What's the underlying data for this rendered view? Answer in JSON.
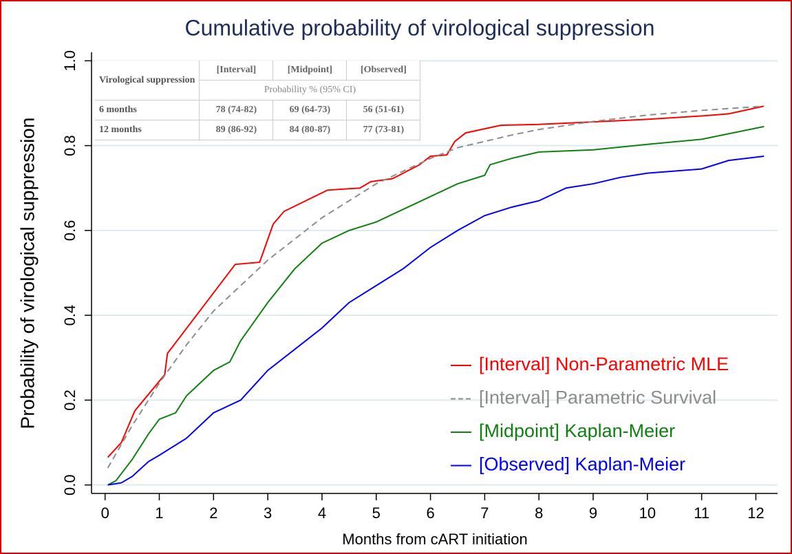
{
  "chart_data": {
    "type": "line",
    "title": "Cumulative probability of virological suppression",
    "x_label": "Months from cART initiation",
    "y_label": "Probability of virological suppression",
    "xlim": [
      -0.25,
      12.4
    ],
    "xticks": [
      0,
      1,
      2,
      3,
      4,
      5,
      6,
      7,
      8,
      9,
      10,
      11,
      12
    ],
    "ylim": [
      -0.02,
      1.02
    ],
    "yticks": [
      {
        "value": 0,
        "label": "0.0"
      },
      {
        "value": 0.2,
        "label": "0.2"
      },
      {
        "value": 0.4,
        "label": "0.4"
      },
      {
        "value": 0.6,
        "label": "0.6"
      },
      {
        "value": 0.8,
        "label": "0.8"
      },
      {
        "value": 1,
        "label": "1.0"
      }
    ],
    "grid": true,
    "legend": "lower right",
    "series": [
      {
        "name": "[Interval] Non-Parametric MLE",
        "color": "#ff0000",
        "dashed": false,
        "x": [
          0.05,
          0.3,
          0.55,
          1.1,
          1.15,
          2.4,
          2.85,
          3.1,
          3.3,
          4.1,
          4.7,
          4.9,
          5.3,
          5.8,
          6.0,
          6.3,
          6.45,
          6.65,
          7.3,
          8,
          9,
          10,
          11,
          11.5,
          12.15
        ],
        "values": [
          0.065,
          0.1,
          0.175,
          0.26,
          0.31,
          0.52,
          0.525,
          0.615,
          0.645,
          0.695,
          0.7,
          0.715,
          0.722,
          0.755,
          0.775,
          0.778,
          0.81,
          0.83,
          0.848,
          0.85,
          0.856,
          0.862,
          0.87,
          0.875,
          0.893
        ]
      },
      {
        "name": "[Interval] Parametric Survival",
        "color": "#8c8c8c",
        "dashed": true,
        "x": [
          0.05,
          0.5,
          1,
          1.5,
          2,
          2.5,
          3,
          3.5,
          4,
          4.5,
          5,
          5.5,
          6,
          6.5,
          7,
          7.5,
          8,
          9,
          10,
          11,
          12.15
        ],
        "values": [
          0.04,
          0.14,
          0.24,
          0.33,
          0.41,
          0.47,
          0.53,
          0.58,
          0.63,
          0.67,
          0.71,
          0.74,
          0.77,
          0.795,
          0.81,
          0.825,
          0.838,
          0.857,
          0.872,
          0.883,
          0.893
        ]
      },
      {
        "name": "[Midpoint] Kaplan-Meier",
        "color": "#108010",
        "dashed": false,
        "x": [
          0.05,
          0.2,
          0.5,
          0.8,
          1,
          1.3,
          1.5,
          2,
          2.3,
          2.5,
          3,
          3.5,
          4,
          4.5,
          5,
          5.5,
          6,
          6.5,
          7,
          7.1,
          7.5,
          8,
          9,
          10,
          11,
          12.15
        ],
        "values": [
          0,
          0.01,
          0.06,
          0.12,
          0.155,
          0.17,
          0.21,
          0.27,
          0.29,
          0.34,
          0.43,
          0.51,
          0.57,
          0.6,
          0.62,
          0.65,
          0.68,
          0.71,
          0.73,
          0.755,
          0.77,
          0.785,
          0.79,
          0.803,
          0.815,
          0.845
        ]
      },
      {
        "name": "[Observed] Kaplan-Meier",
        "color": "#0000ff",
        "dashed": false,
        "x": [
          0.05,
          0.3,
          0.5,
          0.8,
          1,
          1.5,
          2,
          2.5,
          3,
          3.5,
          4,
          4.5,
          5,
          5.5,
          6,
          6.5,
          7,
          7.5,
          8,
          8.5,
          9,
          9.5,
          10,
          11,
          11.5,
          12.15
        ],
        "values": [
          0,
          0.005,
          0.02,
          0.055,
          0.07,
          0.11,
          0.17,
          0.2,
          0.27,
          0.32,
          0.37,
          0.43,
          0.47,
          0.51,
          0.56,
          0.6,
          0.635,
          0.655,
          0.67,
          0.7,
          0.71,
          0.725,
          0.735,
          0.745,
          0.765,
          0.775
        ]
      }
    ],
    "table": {
      "header": [
        "Virological suppression",
        "[Interval]",
        "[Midpoint]",
        "[Observed]"
      ],
      "subheader": "Probability % (95% CI)",
      "rows": [
        [
          "6 months",
          "78 (74-82)",
          "69 (64-73)",
          "56 (51-61)"
        ],
        [
          "12 months",
          "89 (86-92)",
          "84 (80-87)",
          "77 (73-81)"
        ]
      ]
    }
  }
}
